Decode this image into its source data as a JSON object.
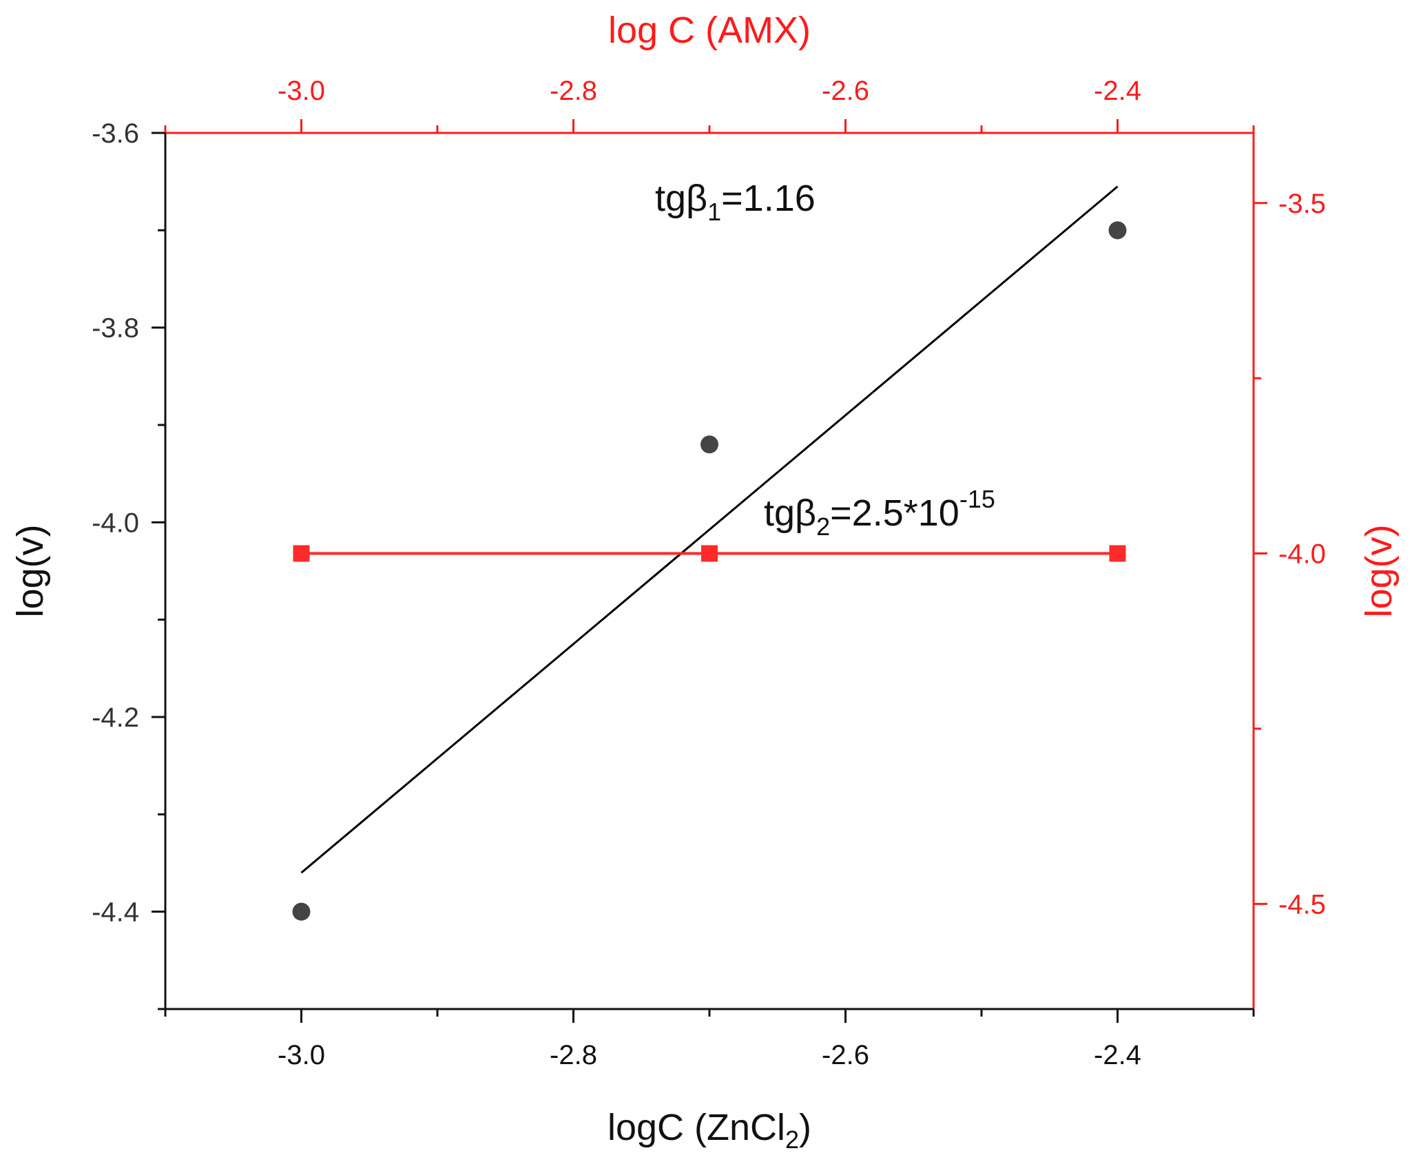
{
  "chart_data": {
    "type": "scatter",
    "axes": {
      "bottom": {
        "label_main": "logC (ZnCl",
        "label_sub": "2",
        "label_end": ")",
        "range": [
          -3.1,
          -2.3
        ],
        "ticks": [
          -3.0,
          -2.8,
          -2.6,
          -2.4
        ],
        "tick_labels": [
          "-3.0",
          "-2.8",
          "-2.6",
          "-2.4"
        ],
        "color": "#111111"
      },
      "top": {
        "label": "log C (AMX)",
        "range": [
          -3.1,
          -2.3
        ],
        "ticks": [
          -3.0,
          -2.8,
          -2.6,
          -2.4
        ],
        "tick_labels": [
          "-3.0",
          "-2.8",
          "-2.6",
          "-2.4"
        ],
        "color": "#ff1a1a"
      },
      "left": {
        "label": "log(v)",
        "range": [
          -4.5,
          -3.6
        ],
        "ticks": [
          -3.6,
          -3.8,
          -4.0,
          -4.2,
          -4.4
        ],
        "tick_labels": [
          "-3.6",
          "-3.8",
          "-4.0",
          "-4.2",
          "-4.4"
        ],
        "color": "#111111"
      },
      "right": {
        "label": "log(v)",
        "range": [
          -4.65,
          -3.4
        ],
        "ticks": [
          -3.5,
          -4.0,
          -4.5
        ],
        "tick_labels": [
          "-3.5",
          "-4.0",
          "-4.5"
        ],
        "color": "#ff1a1a"
      }
    },
    "series": [
      {
        "marker": "circle",
        "axis_y": "left",
        "color": "#444444",
        "x": [
          -3.0,
          -2.7,
          -2.4
        ],
        "y": [
          -4.4,
          -3.92,
          -3.7
        ],
        "fit": {
          "x": [
            -3.0,
            -2.4
          ],
          "y": [
            -4.36,
            -3.655
          ],
          "color": "#000000"
        }
      },
      {
        "marker": "square",
        "axis_y": "right",
        "color": "#ff2a2a",
        "x": [
          -3.0,
          -2.7,
          -2.4
        ],
        "y": [
          -4.0,
          -4.0,
          -4.0
        ],
        "line": true
      }
    ],
    "annotations": [
      {
        "prefix": "tgβ",
        "sub": "1",
        "suffix": "=1.16",
        "x": -2.74,
        "y": -3.68,
        "axis_y": "left"
      },
      {
        "prefix": "tgβ",
        "sub": "2",
        "suffix": "=2.5*10",
        "sup": "-15",
        "x": -2.66,
        "y": -3.96,
        "axis_y": "right"
      }
    ],
    "grid": false
  }
}
